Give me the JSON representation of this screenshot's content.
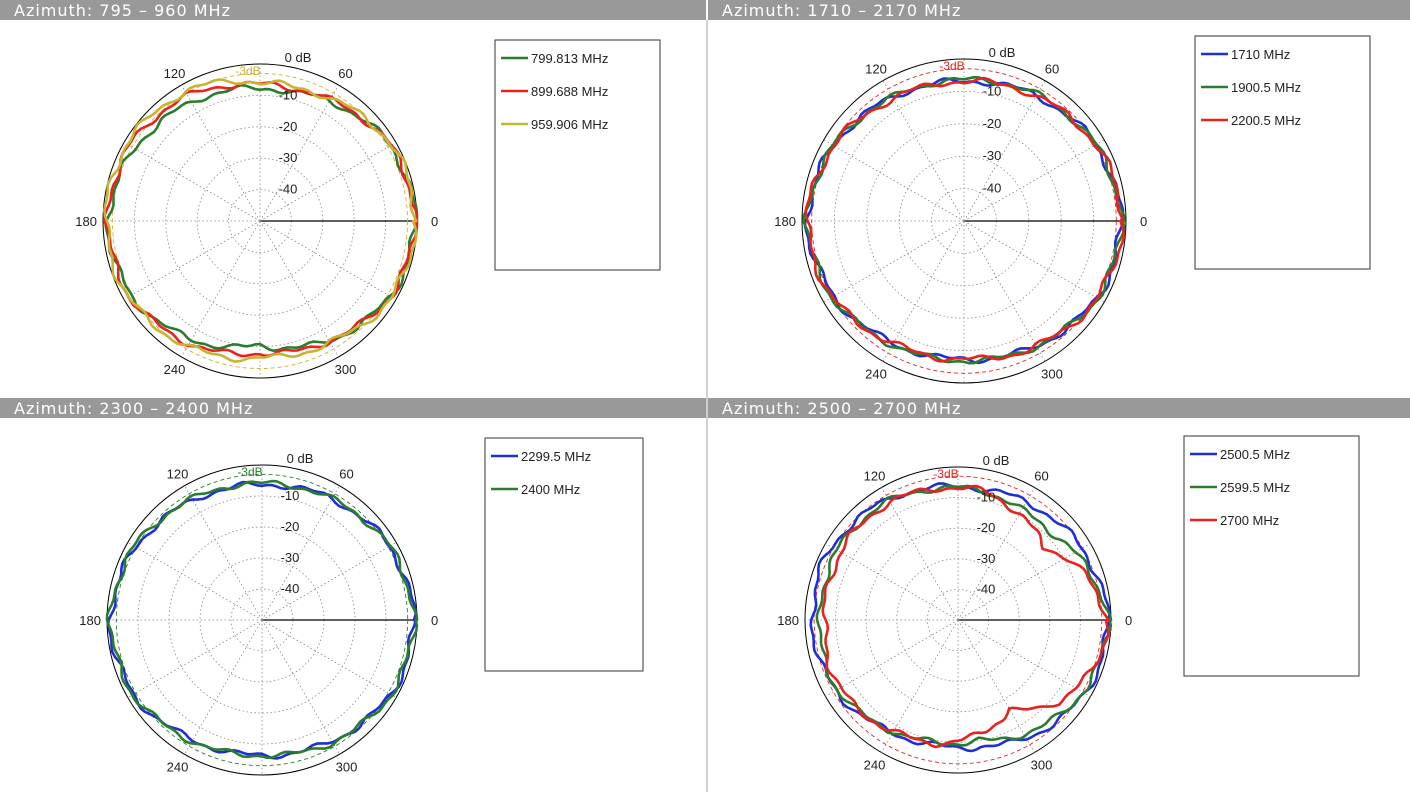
{
  "chart_data": [
    {
      "type": "polar",
      "title": "Azimuth: 795 – 960 MHz",
      "radial_unit": "0 dB",
      "radial_labels": [
        "-10",
        "-20",
        "-30",
        "-40"
      ],
      "angle_labels": [
        "0",
        "60",
        "120",
        "180",
        "240",
        "300"
      ],
      "reference_label": "-3dB",
      "reference_color": "#c8b432",
      "rlim": [
        -50,
        0
      ],
      "legend": "right",
      "series": [
        {
          "name": "799.813 MHz",
          "color": "#2a7d2e",
          "angles": [
            0,
            30,
            60,
            75,
            90,
            105,
            120,
            150,
            180,
            210,
            240,
            270,
            300,
            330
          ],
          "values": [
            -0.5,
            -2,
            -6,
            -7.5,
            -8,
            -7,
            -6.5,
            -4,
            -1.5,
            -2.5,
            -6.5,
            -10.5,
            -6,
            -2
          ]
        },
        {
          "name": "899.688 MHz",
          "color": "#e8221f",
          "angles": [
            0,
            30,
            60,
            75,
            90,
            105,
            120,
            150,
            180,
            210,
            240,
            270,
            300,
            330
          ],
          "values": [
            -0.5,
            -2,
            -5.5,
            -6.5,
            -6.5,
            -5.5,
            -4,
            -2,
            -1.5,
            -2,
            -5,
            -8,
            -6,
            -2
          ]
        },
        {
          "name": "959.906 MHz",
          "color": "#c8b432",
          "angles": [
            0,
            30,
            60,
            75,
            90,
            105,
            120,
            150,
            180,
            210,
            240,
            270,
            300,
            330
          ],
          "values": [
            -0.5,
            -1.5,
            -5,
            -6,
            -6,
            -4,
            -2.5,
            -1,
            -1,
            -1.5,
            -4,
            -6.5,
            -5.5,
            -1.5
          ]
        }
      ]
    },
    {
      "type": "polar",
      "title": "Azimuth: 1710 – 2170 MHz",
      "radial_unit": "0 dB",
      "radial_labels": [
        "-10",
        "-20",
        "-30",
        "-40"
      ],
      "angle_labels": [
        "0",
        "60",
        "120",
        "180",
        "240",
        "300"
      ],
      "reference_label": "-3dB",
      "reference_color": "#e8221f",
      "rlim": [
        -50,
        0
      ],
      "legend": "right",
      "series": [
        {
          "name": "1710 MHz",
          "color": "#1f2fd6",
          "angles": [
            0,
            30,
            60,
            90,
            120,
            150,
            180,
            210,
            240,
            270,
            300,
            330
          ],
          "values": [
            -1.5,
            -3,
            -5.5,
            -7,
            -6,
            -3.5,
            -1.5,
            -3.5,
            -6.5,
            -7.5,
            -5.5,
            -2.5
          ]
        },
        {
          "name": "1900.5 MHz",
          "color": "#2a7d2e",
          "angles": [
            0,
            30,
            60,
            90,
            120,
            150,
            180,
            210,
            240,
            270,
            300,
            330
          ],
          "values": [
            -1.5,
            -3,
            -5,
            -6.5,
            -6,
            -3.5,
            -1.5,
            -3,
            -6,
            -7,
            -5.5,
            -2.5
          ]
        },
        {
          "name": "2200.5 MHz",
          "color": "#e8221f",
          "angles": [
            0,
            30,
            60,
            90,
            120,
            150,
            180,
            210,
            240,
            270,
            300,
            330
          ],
          "values": [
            -1,
            -3,
            -5.5,
            -7,
            -6.5,
            -3.5,
            -1.5,
            -3,
            -6.5,
            -7.5,
            -5.5,
            -2.5
          ]
        }
      ]
    },
    {
      "type": "polar",
      "title": "Azimuth: 2300 – 2400 MHz",
      "radial_unit": "0 dB",
      "radial_labels": [
        "-10",
        "-20",
        "-30",
        "-40"
      ],
      "angle_labels": [
        "0",
        "60",
        "120",
        "180",
        "240",
        "300"
      ],
      "reference_label": "-3dB",
      "reference_color": "#2a7d2e",
      "rlim": [
        -50,
        0
      ],
      "legend": "right",
      "series": [
        {
          "name": "2299.5 MHz",
          "color": "#1f2fd6",
          "angles": [
            0,
            30,
            60,
            90,
            120,
            150,
            180,
            210,
            240,
            270,
            300,
            330
          ],
          "values": [
            -1,
            -2.5,
            -5,
            -6.5,
            -5.5,
            -3,
            -1,
            -2,
            -5.5,
            -6.5,
            -5,
            -2
          ]
        },
        {
          "name": "2400 MHz",
          "color": "#2a7d2e",
          "angles": [
            0,
            30,
            60,
            90,
            120,
            150,
            180,
            210,
            240,
            270,
            300,
            330
          ],
          "values": [
            -1,
            -2.5,
            -5,
            -6,
            -5,
            -2.5,
            -1,
            -2,
            -5,
            -6.5,
            -4.5,
            -2
          ]
        }
      ]
    },
    {
      "type": "polar",
      "title": "Azimuth: 2500 – 2700 MHz",
      "radial_unit": "0 dB",
      "radial_labels": [
        "-10",
        "-20",
        "-30",
        "-40"
      ],
      "angle_labels": [
        "0",
        "60",
        "120",
        "180",
        "240",
        "300"
      ],
      "reference_label": "-3dB",
      "reference_color": "#e8221f",
      "rlim": [
        -50,
        0
      ],
      "legend": "right",
      "series": [
        {
          "name": "2500.5 MHz",
          "color": "#1f2fd6",
          "angles": [
            0,
            20,
            40,
            60,
            80,
            100,
            120,
            140,
            160,
            180,
            200,
            220,
            240,
            260,
            280,
            300,
            320,
            340
          ],
          "values": [
            -1,
            -2.5,
            -4,
            -5.5,
            -6.5,
            -6,
            -4.5,
            -3,
            -2,
            -2.5,
            -3,
            -5,
            -7.5,
            -8.5,
            -8,
            -5.5,
            -3,
            -1.5
          ]
        },
        {
          "name": "2599.5 MHz",
          "color": "#2a7d2e",
          "angles": [
            0,
            20,
            40,
            60,
            80,
            100,
            120,
            140,
            160,
            180,
            200,
            220,
            240,
            260,
            280,
            300,
            320,
            340
          ],
          "values": [
            -1,
            -4,
            -8,
            -8.5,
            -7,
            -6.5,
            -5,
            -4.5,
            -4.5,
            -5,
            -4,
            -5.5,
            -8,
            -9.5,
            -10,
            -7,
            -4,
            -2
          ]
        },
        {
          "name": "2700 MHz",
          "color": "#e8221f",
          "angles": [
            0,
            20,
            40,
            60,
            80,
            100,
            120,
            140,
            160,
            180,
            200,
            220,
            240,
            260,
            280,
            300,
            320,
            340
          ],
          "values": [
            -1,
            -6,
            -13,
            -10,
            -7,
            -6.5,
            -5.5,
            -5.5,
            -6,
            -6.5,
            -5.5,
            -6,
            -8,
            -9,
            -12,
            -16,
            -8,
            -3
          ]
        }
      ]
    }
  ]
}
